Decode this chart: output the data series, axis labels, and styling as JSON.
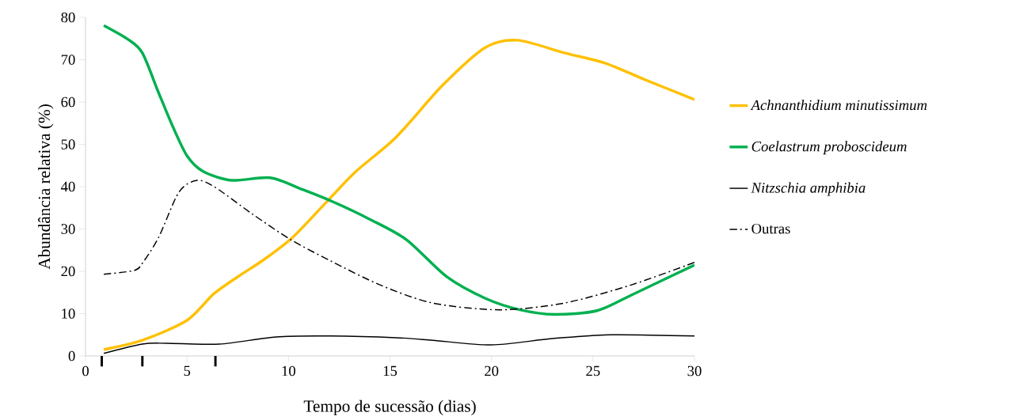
{
  "chart_data": {
    "type": "line",
    "xlabel": "Tempo de sucessão (dias)",
    "ylabel": "Abundância relativa  (%)",
    "xlim": [
      0,
      30
    ],
    "ylim": [
      0,
      80
    ],
    "xticks": [
      0,
      5,
      10,
      15,
      20,
      25,
      30,
      {
        "value": 0.8,
        "label": null
      },
      {
        "value": 2.8,
        "label": null
      },
      {
        "value": 6.4,
        "label": null
      }
    ],
    "yticks": [
      0,
      10,
      20,
      30,
      40,
      50,
      60,
      70,
      80
    ],
    "grid": false,
    "legend": "right",
    "marker": "none",
    "series": [
      {
        "name": "*Achnanthidium minutissimum*",
        "color": "#ffc000",
        "line_style": "solid",
        "x": [
          0.9,
          2.8,
          5.0,
          6.3,
          7.5,
          8.8,
          10.2,
          11.8,
          13.3,
          15.3,
          17.6,
          19.7,
          21.3,
          23.6,
          25.6,
          27.5,
          30
        ],
        "values": [
          1.5,
          3.7,
          8.4,
          14.6,
          18.7,
          22.8,
          28,
          36,
          43.5,
          51.7,
          64,
          72.9,
          74.6,
          71.6,
          69.2,
          65.4,
          60.6
        ]
      },
      {
        "name": "*Coelastrum proboscideum*",
        "color": "#00b050",
        "line_style": "solid",
        "x": [
          0.9,
          2.1,
          2.8,
          3.6,
          4.3,
          5.0,
          5.8,
          7.2,
          9.1,
          10.7,
          12.2,
          14,
          15.8,
          17.8,
          19.7,
          21.4,
          23.1,
          25.2,
          26.9,
          30
        ],
        "values": [
          78.1,
          74.8,
          71.6,
          62.2,
          54.2,
          47.3,
          43.6,
          41.5,
          42.1,
          39.3,
          36.4,
          32.3,
          27.5,
          18.7,
          13.6,
          10.9,
          9.8,
          10.7,
          14.4,
          21.5
        ]
      },
      {
        "name": "*Nitzschia amphibia*",
        "color": "#000000",
        "line_style": "solid",
        "x": [
          0.9,
          2.8,
          4,
          6.6,
          9.4,
          12.1,
          15.3,
          17.1,
          20,
          23,
          25.9,
          30
        ],
        "values": [
          0.6,
          2.8,
          3,
          2.8,
          4.5,
          4.7,
          4.3,
          3.7,
          2.6,
          4.1,
          5,
          4.7
        ]
      },
      {
        "name": "Outras",
        "color": "#000000",
        "line_style": "dashdot",
        "x": [
          0.9,
          2.4,
          2.8,
          3.6,
          4.6,
          5.5,
          6.4,
          8.2,
          10.1,
          12.1,
          14.5,
          17.1,
          20.4,
          23.6,
          26.9,
          30
        ],
        "values": [
          19.3,
          20.2,
          21.9,
          28,
          38.7,
          41.5,
          39.8,
          33.6,
          27.5,
          22.4,
          16.8,
          12.5,
          10.9,
          12.5,
          16.8,
          22.1
        ]
      }
    ]
  }
}
